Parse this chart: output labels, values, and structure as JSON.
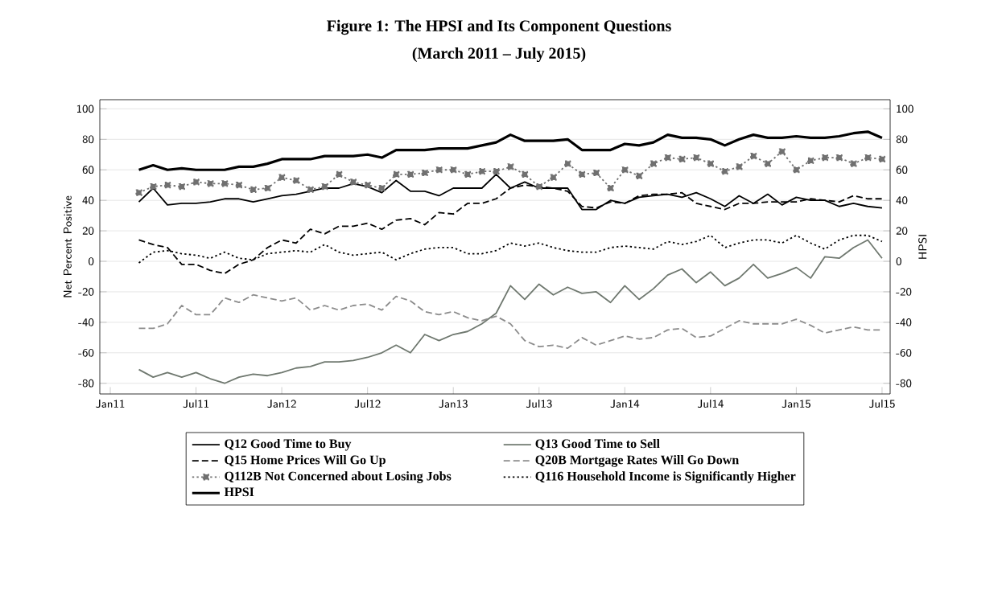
{
  "chart_data": {
    "type": "line",
    "title": "Figure 1: The HPSI and Its Component Questions",
    "subtitle": "(March 2011 – July 2015)",
    "ylabel": "Net Percent Positive",
    "y2label": "HPSI",
    "x": [
      "2011-03",
      "2011-04",
      "2011-05",
      "2011-06",
      "2011-07",
      "2011-08",
      "2011-09",
      "2011-10",
      "2011-11",
      "2011-12",
      "2012-01",
      "2012-02",
      "2012-03",
      "2012-04",
      "2012-05",
      "2012-06",
      "2012-07",
      "2012-08",
      "2012-09",
      "2012-10",
      "2012-11",
      "2012-12",
      "2013-01",
      "2013-02",
      "2013-03",
      "2013-04",
      "2013-05",
      "2013-06",
      "2013-07",
      "2013-08",
      "2013-09",
      "2013-10",
      "2013-11",
      "2013-12",
      "2014-01",
      "2014-02",
      "2014-03",
      "2014-04",
      "2014-05",
      "2014-06",
      "2014-07",
      "2014-08",
      "2014-09",
      "2014-10",
      "2014-11",
      "2014-12",
      "2015-01",
      "2015-02",
      "2015-03",
      "2015-04",
      "2015-05",
      "2015-06",
      "2015-07"
    ],
    "series": [
      {
        "name": "Q12 Good Time to Buy",
        "color": "#000000",
        "line_style": "solid",
        "values": [
          39,
          48,
          37,
          38,
          38,
          39,
          41,
          41,
          39,
          41,
          43,
          44,
          46,
          48,
          48,
          51,
          49,
          45,
          53,
          46,
          46,
          43,
          48,
          48,
          48,
          57,
          48,
          52,
          48,
          48,
          48,
          34,
          34,
          40,
          38,
          42,
          43,
          44,
          42,
          45,
          41,
          36,
          43,
          38,
          44,
          37,
          42,
          40,
          40,
          36,
          38,
          36,
          35
        ]
      },
      {
        "name": "Q13 Good Time to Sell",
        "color": "#6f786f",
        "line_style": "solid",
        "values": [
          -71,
          -76,
          -73,
          -76,
          -73,
          -77,
          -80,
          -76,
          -74,
          -75,
          -73,
          -70,
          -69,
          -66,
          -66,
          -65,
          -63,
          -60,
          -55,
          -60,
          -48,
          -52,
          -48,
          -46,
          -41,
          -34,
          -16,
          -25,
          -15,
          -22,
          -17,
          -21,
          -20,
          -27,
          -16,
          -25,
          -18,
          -9,
          -5,
          -14,
          -7,
          -16,
          -11,
          -2,
          -11,
          -8,
          -4,
          -11,
          3,
          2,
          9,
          14,
          2
        ]
      },
      {
        "name": "Q15 Home Prices Will Go Up",
        "color": "#000000",
        "line_style": "dashed",
        "values": [
          14,
          11,
          9,
          -2,
          -2,
          -6,
          -8,
          -2,
          1,
          9,
          14,
          12,
          21,
          18,
          23,
          23,
          25,
          21,
          27,
          28,
          24,
          32,
          31,
          38,
          38,
          41,
          48,
          50,
          49,
          48,
          46,
          36,
          35,
          39,
          38,
          43,
          44,
          44,
          45,
          38,
          36,
          34,
          38,
          38,
          39,
          39,
          39,
          41,
          40,
          39,
          43,
          41,
          41
        ]
      },
      {
        "name": "Q20B Mortgage Rates Will Go Down",
        "color": "#8c8c8c",
        "line_style": "dashed",
        "values": [
          -44,
          -44,
          -41,
          -29,
          -35,
          -35,
          -24,
          -27,
          -22,
          -24,
          -26,
          -24,
          -32,
          -29,
          -32,
          -29,
          -28,
          -32,
          -23,
          -26,
          -33,
          -35,
          -33,
          -37,
          -39,
          -36,
          -41,
          -52,
          -56,
          -55,
          -57,
          -50,
          -55,
          -52,
          -49,
          -51,
          -50,
          -45,
          -44,
          -50,
          -49,
          -44,
          -39,
          -41,
          -41,
          -41,
          -38,
          -42,
          -47,
          -45,
          -43,
          -45,
          -45
        ]
      },
      {
        "name": "Q112B Not Concerned about Losing Jobs",
        "color": "#707070",
        "line_style": "dotted",
        "marker": "square",
        "values": [
          45,
          49,
          50,
          49,
          52,
          51,
          51,
          50,
          47,
          48,
          55,
          53,
          47,
          49,
          57,
          52,
          50,
          48,
          57,
          57,
          58,
          60,
          60,
          57,
          59,
          59,
          62,
          57,
          49,
          55,
          64,
          57,
          58,
          48,
          60,
          56,
          64,
          68,
          67,
          68,
          64,
          59,
          62,
          69,
          64,
          72,
          60,
          66,
          68,
          68,
          64,
          68,
          67
        ]
      },
      {
        "name": "Q116 Household Income is Significantly Higher",
        "color": "#000000",
        "line_style": "dotted",
        "values": [
          -1,
          6,
          7,
          5,
          4,
          2,
          6,
          2,
          1,
          5,
          6,
          7,
          6,
          11,
          6,
          4,
          5,
          6,
          1,
          5,
          8,
          9,
          9,
          5,
          5,
          7,
          12,
          10,
          12,
          9,
          7,
          6,
          6,
          9,
          10,
          9,
          8,
          13,
          11,
          13,
          17,
          9,
          12,
          14,
          14,
          12,
          17,
          12,
          8,
          14,
          17,
          17,
          13
        ]
      },
      {
        "name": "HPSI",
        "color": "#000000",
        "line_style": "solid",
        "axis": "y2",
        "values": [
          60,
          63,
          60,
          61,
          60,
          60,
          60,
          62,
          62,
          64,
          67,
          67,
          67,
          69,
          69,
          69,
          70,
          68,
          73,
          73,
          73,
          74,
          74,
          74,
          76,
          78,
          83,
          79,
          79,
          79,
          80,
          73,
          73,
          73,
          77,
          76,
          78,
          83,
          81,
          81,
          80,
          76,
          80,
          83,
          81,
          81,
          82,
          81,
          81,
          82,
          84,
          85,
          81
        ]
      }
    ],
    "xlim": [
      "2010-12-09",
      "2015-07-18"
    ],
    "xticks": [
      {
        "value": "2011-01",
        "label": "Jan11"
      },
      {
        "value": "2011-07",
        "label": "Jul11"
      },
      {
        "value": "2012-01",
        "label": "Jan12"
      },
      {
        "value": "2012-07",
        "label": "Jul12"
      },
      {
        "value": "2013-01",
        "label": "Jan13"
      },
      {
        "value": "2013-07",
        "label": "Jul13"
      },
      {
        "value": "2014-01",
        "label": "Jan14"
      },
      {
        "value": "2014-07",
        "label": "Jul14"
      },
      {
        "value": "2015-01",
        "label": "Jan15"
      },
      {
        "value": "2015-07",
        "label": "Jul15"
      }
    ],
    "ylim": [
      -87,
      106
    ],
    "yticks": [
      -80,
      -60,
      -40,
      -20,
      0,
      20,
      40,
      60,
      80,
      100
    ],
    "y2lim": [
      -87,
      106
    ],
    "y2ticks": [
      -80,
      -60,
      -40,
      -20,
      0,
      20,
      40,
      60,
      80,
      100
    ],
    "grid": "y",
    "legend": "bottom"
  }
}
